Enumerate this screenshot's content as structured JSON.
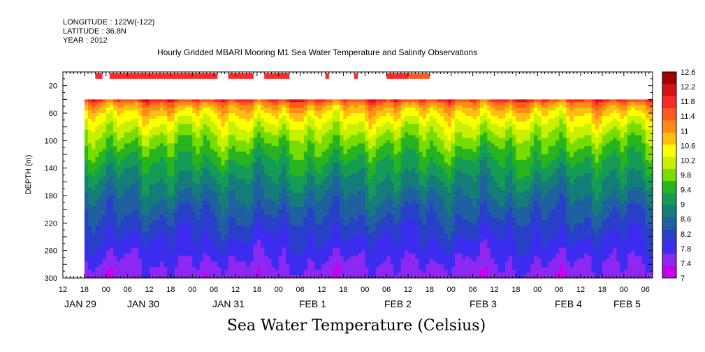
{
  "meta": {
    "longitude": "LONGITUDE : 122W(-122)",
    "latitude": "LATITUDE : 36.8N",
    "year": "YEAR : 2012"
  },
  "chart_data": {
    "type": "heatmap",
    "title": "Hourly Gridded MBARI Mooring M1 Sea Water Temperature and Salinity Observations",
    "bottom_title": "Sea Water Temperature (Celsius)",
    "ylabel": "DEPTH (m)",
    "ylim": [
      300,
      0
    ],
    "yticks": [
      20,
      60,
      100,
      140,
      180,
      220,
      260,
      300
    ],
    "x_hour_ticks": [
      "12",
      "18",
      "00",
      "06",
      "12",
      "18",
      "00",
      "06",
      "12",
      "18",
      "00",
      "06",
      "12",
      "18",
      "00",
      "06",
      "12",
      "18",
      "00",
      "06",
      "12",
      "18",
      "00",
      "06",
      "12",
      "18",
      "00",
      "06"
    ],
    "x_date_labels": [
      "JAN 29",
      "JAN 30",
      "JAN 31",
      "FEB  1",
      "FEB  2",
      "FEB  3",
      "FEB  4",
      "FEB  5"
    ],
    "x_range_hours": [
      0,
      164
    ],
    "data_start_hour": 6,
    "colorbar_levels": [
      "12.6",
      "12.2",
      "11.8",
      "11.4",
      "11",
      "10.6",
      "10.2",
      "9.8",
      "9.4",
      "9",
      "8.6",
      "8.2",
      "7.8",
      "7.4",
      "7"
    ],
    "colors": [
      "#a00000",
      "#d41414",
      "#ff2828",
      "#ff5a1e",
      "#ff8c14",
      "#ffbe14",
      "#ffff00",
      "#c8f000",
      "#78dc00",
      "#28b41e",
      "#149b55",
      "#147d78",
      "#1e60a0",
      "#2840c8",
      "#3c2cf0",
      "#8c28f0",
      "#c800f0"
    ],
    "surface_depth_m": [
      40,
      300
    ],
    "thermocline": {
      "top_temp": 11.9,
      "bottom_temp": 7.1,
      "surface_depth": 40
    },
    "near_surface_patches": [
      {
        "start": 9,
        "end": 11,
        "temp": 11.9
      },
      {
        "start": 13,
        "end": 43,
        "temp": 11.9
      },
      {
        "start": 46,
        "end": 53,
        "temp": 11.9
      },
      {
        "start": 56,
        "end": 63,
        "temp": 11.9
      },
      {
        "start": 73,
        "end": 74,
        "temp": 11.9
      },
      {
        "start": 81,
        "end": 82,
        "temp": 11.9
      },
      {
        "start": 90,
        "end": 96,
        "temp": 11.9
      },
      {
        "start": 96,
        "end": 102,
        "temp": 11.6
      }
    ]
  }
}
